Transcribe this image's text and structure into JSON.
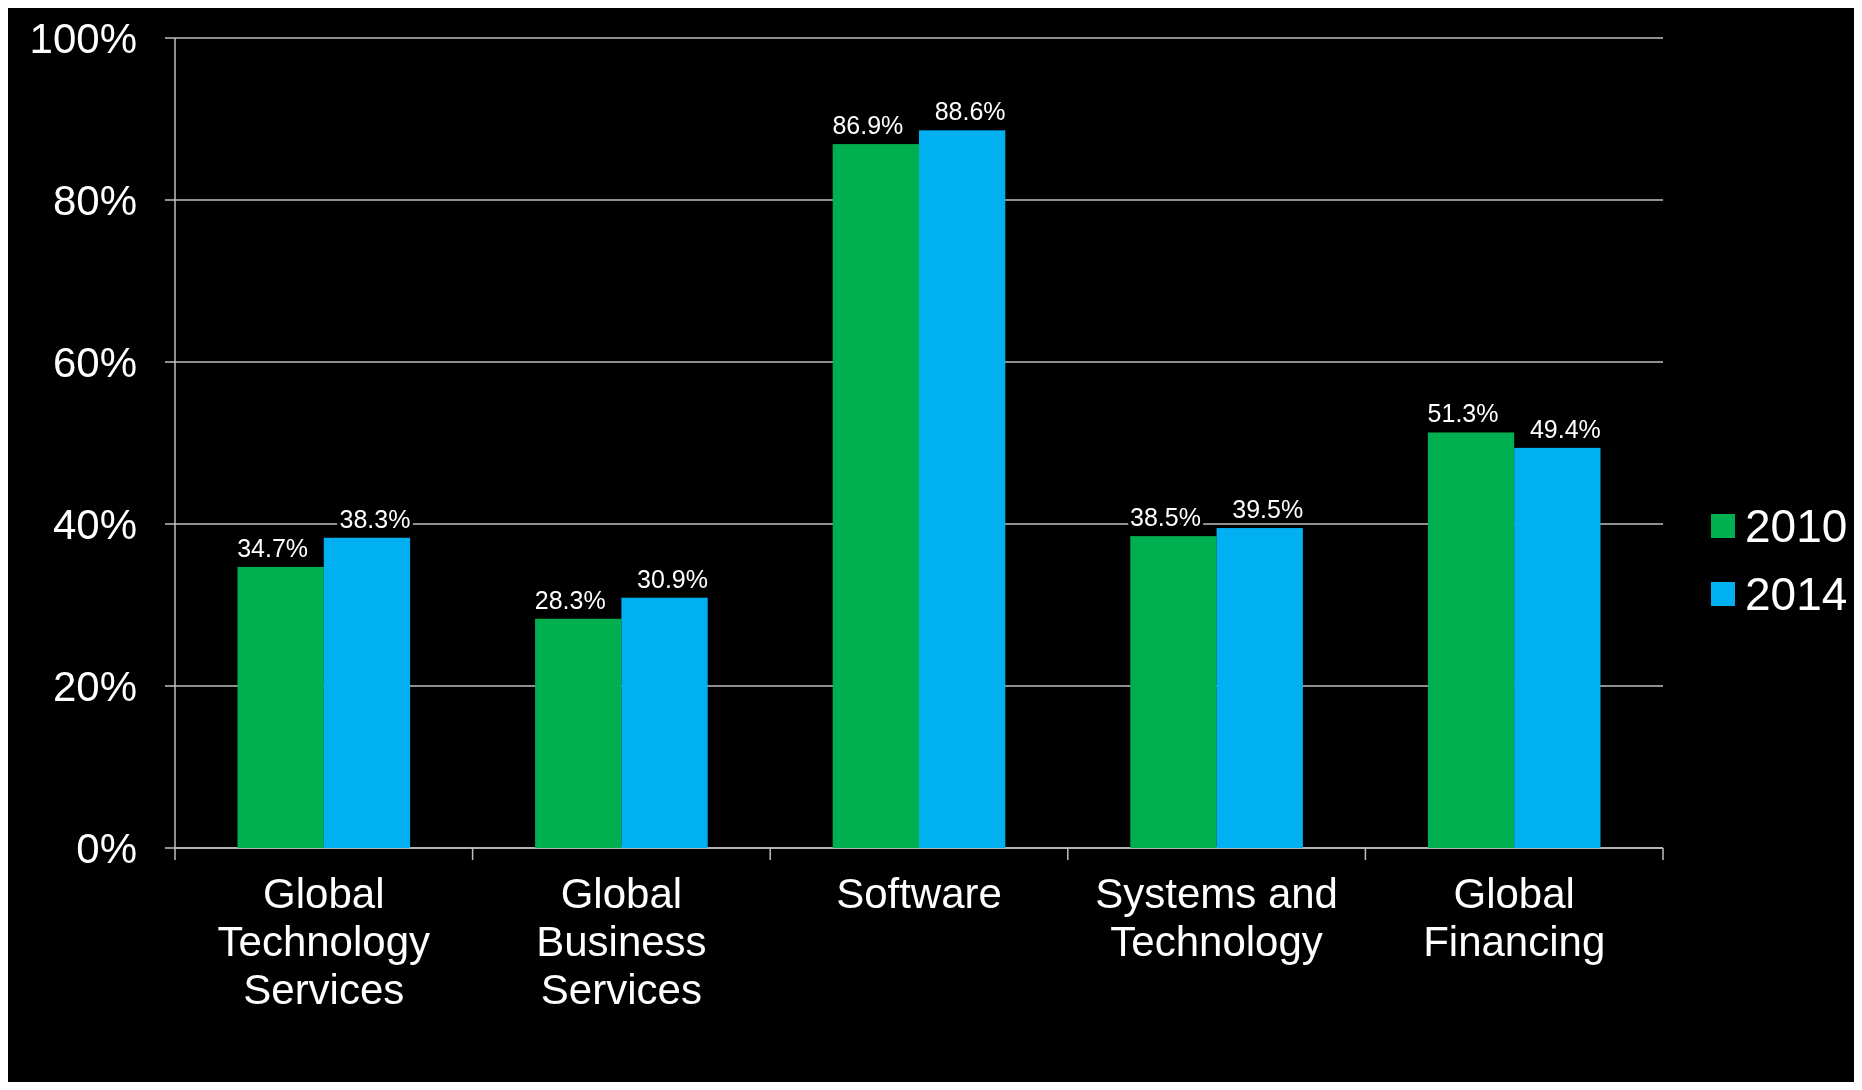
{
  "chart_data": {
    "type": "bar",
    "categories": [
      "Global Technology Services",
      "Global Business Services",
      "Software",
      "Systems and Technology",
      "Global Financing"
    ],
    "series": [
      {
        "name": "2010",
        "color": "#00b050",
        "values": [
          34.7,
          28.3,
          86.9,
          38.5,
          51.3
        ],
        "value_labels": [
          "34.7%",
          "28.3%",
          "86.9%",
          "38.5%",
          "51.3%"
        ]
      },
      {
        "name": "2014",
        "color": "#00b0f0",
        "values": [
          38.3,
          30.9,
          88.6,
          39.5,
          49.4
        ],
        "value_labels": [
          "38.3%",
          "30.9%",
          "88.6%",
          "39.5%",
          "49.4%"
        ]
      }
    ],
    "ylim": [
      0,
      100
    ],
    "yticks": [
      {
        "value": 0,
        "label": "0%"
      },
      {
        "value": 20,
        "label": "20%"
      },
      {
        "value": 40,
        "label": "40%"
      },
      {
        "value": 60,
        "label": "60%"
      },
      {
        "value": 80,
        "label": "80%"
      },
      {
        "value": 100,
        "label": "100%"
      }
    ],
    "grid": "y",
    "legend": "right"
  }
}
